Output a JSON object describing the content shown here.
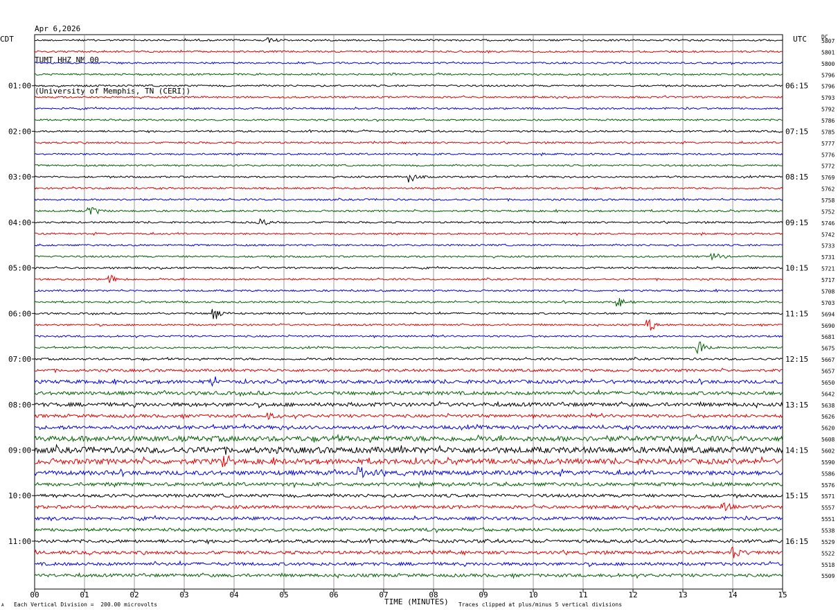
{
  "header": {
    "date": "Apr 6,2026",
    "station": "TUMT HHZ NM 00",
    "network": "(University of Memphis, TN (CERI))"
  },
  "axes": {
    "left_tz": "CDT",
    "right_tz": "UTC",
    "dc_header": "DC",
    "x_label": "TIME (MINUTES)"
  },
  "footer": {
    "scale_note": "Each Vertical Division =  200.00 microvolts",
    "clip_note": "Traces clipped at plus/minus 5 vertical divisions",
    "corner_mark": "A"
  },
  "colors": {
    "trace_cycle": [
      "#000000",
      "#e00000",
      "#0000e0",
      "#006000"
    ],
    "grid": "#808080",
    "background": "#ffffff"
  },
  "chart_data": {
    "type": "line",
    "subtype": "helicorder",
    "xlim": [
      0,
      15
    ],
    "x_ticks": [
      "00",
      "01",
      "02",
      "03",
      "04",
      "05",
      "06",
      "07",
      "08",
      "09",
      "10",
      "11",
      "12",
      "13",
      "14",
      "15"
    ],
    "rows": 48,
    "minutes_per_row": 15,
    "left_time_labels": [
      {
        "row": 4,
        "label": "01:00"
      },
      {
        "row": 8,
        "label": "02:00"
      },
      {
        "row": 12,
        "label": "03:00"
      },
      {
        "row": 16,
        "label": "04:00"
      },
      {
        "row": 20,
        "label": "05:00"
      },
      {
        "row": 24,
        "label": "06:00"
      },
      {
        "row": 28,
        "label": "07:00"
      },
      {
        "row": 32,
        "label": "08:00"
      },
      {
        "row": 36,
        "label": "09:00"
      },
      {
        "row": 40,
        "label": "10:00"
      },
      {
        "row": 44,
        "label": "11:00"
      }
    ],
    "right_time_labels": [
      {
        "row": 4,
        "label": "06:15"
      },
      {
        "row": 8,
        "label": "07:15"
      },
      {
        "row": 12,
        "label": "08:15"
      },
      {
        "row": 16,
        "label": "09:15"
      },
      {
        "row": 20,
        "label": "10:15"
      },
      {
        "row": 24,
        "label": "11:15"
      },
      {
        "row": 28,
        "label": "12:15"
      },
      {
        "row": 32,
        "label": "13:15"
      },
      {
        "row": 36,
        "label": "14:15"
      },
      {
        "row": 40,
        "label": "15:15"
      },
      {
        "row": 44,
        "label": "16:15"
      }
    ],
    "dc_offsets": [
      "5807",
      "5801",
      "5800",
      "5796",
      "5796",
      "5793",
      "5792",
      "5786",
      "5785",
      "5777",
      "5776",
      "5772",
      "5769",
      "5762",
      "5758",
      "5752",
      "5746",
      "5742",
      "5733",
      "5731",
      "5721",
      "5717",
      "5708",
      "5703",
      "5694",
      "5690",
      "5681",
      "5675",
      "5667",
      "5657",
      "5650",
      "5642",
      "5638",
      "5626",
      "5620",
      "5608",
      "5602",
      "5590",
      "5586",
      "5576",
      "5571",
      "5557",
      "5551",
      "5538",
      "5529",
      "5522",
      "5518",
      "5509"
    ],
    "noise_level_by_row": [
      1,
      1,
      1,
      1,
      1,
      1,
      1,
      1,
      1,
      1,
      1,
      1,
      1,
      1,
      1,
      1,
      1,
      1,
      1,
      1,
      1,
      1,
      1,
      1,
      1,
      1,
      1,
      1,
      1.2,
      1.5,
      2,
      2,
      2.2,
      1.8,
      2,
      3,
      3.5,
      3,
      2.5,
      2,
      1.8,
      1.8,
      1.8,
      1.8,
      1.8,
      1.8,
      1.8,
      1.8
    ],
    "events": [
      {
        "row": 0,
        "minute": 4.7,
        "amp": 2
      },
      {
        "row": 12,
        "minute": 7.5,
        "amp": 6
      },
      {
        "row": 15,
        "minute": 1.1,
        "amp": 5
      },
      {
        "row": 16,
        "minute": 4.5,
        "amp": 4
      },
      {
        "row": 19,
        "minute": 13.6,
        "amp": 4
      },
      {
        "row": 21,
        "minute": 1.5,
        "amp": 4
      },
      {
        "row": 23,
        "minute": 11.7,
        "amp": 4
      },
      {
        "row": 24,
        "minute": 3.6,
        "amp": 6
      },
      {
        "row": 25,
        "minute": 12.3,
        "amp": 6
      },
      {
        "row": 27,
        "minute": 13.3,
        "amp": 8
      },
      {
        "row": 30,
        "minute": 3.6,
        "amp": 4
      },
      {
        "row": 33,
        "minute": 4.7,
        "amp": 4
      },
      {
        "row": 37,
        "minute": 3.8,
        "amp": 8
      },
      {
        "row": 38,
        "minute": 6.5,
        "amp": 8
      },
      {
        "row": 41,
        "minute": 13.8,
        "amp": 4
      },
      {
        "row": 45,
        "minute": 14.0,
        "amp": 6
      }
    ]
  }
}
